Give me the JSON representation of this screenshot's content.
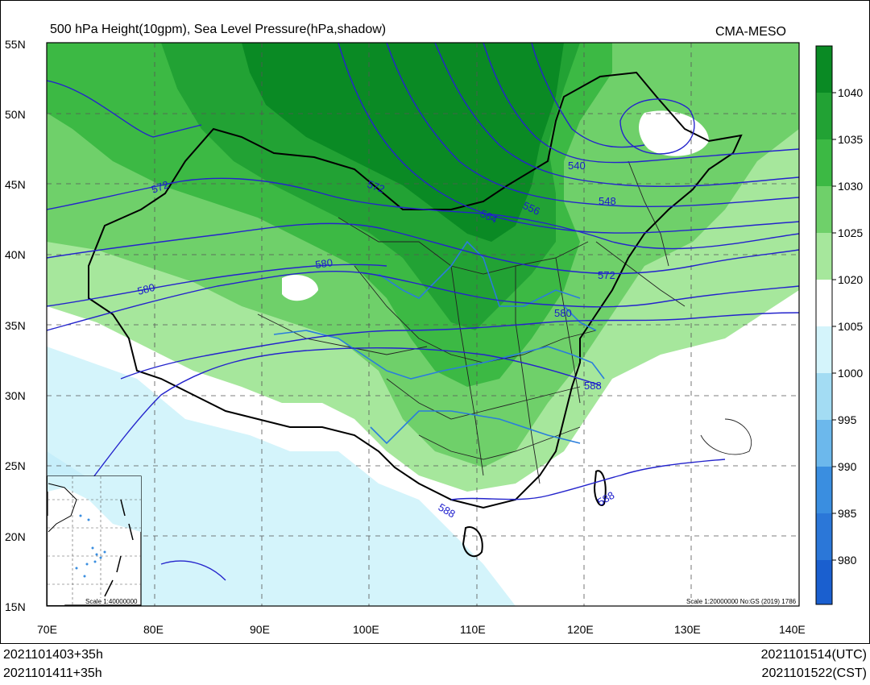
{
  "header": {
    "title": "500 hPa Height(10gpm), Sea Level Pressure(hPa,shadow)",
    "source": "CMA-MESO"
  },
  "axes": {
    "y_ticks": [
      "55N",
      "50N",
      "45N",
      "40N",
      "35N",
      "30N",
      "25N",
      "20N",
      "15N"
    ],
    "x_ticks": [
      "70E",
      "80E",
      "90E",
      "100E",
      "110E",
      "120E",
      "130E",
      "140E"
    ]
  },
  "colorbar": {
    "labels": [
      "1040",
      "1035",
      "1030",
      "1025",
      "1020",
      "1005",
      "1000",
      "995",
      "990",
      "985",
      "980"
    ],
    "colors": [
      "#0a8a24",
      "#22a234",
      "#3cb944",
      "#6fd06a",
      "#a6e79c",
      "#ffffff",
      "#d4f4fb",
      "#a3dcf3",
      "#6cb8ec",
      "#3a8ee0",
      "#1a5fcf"
    ]
  },
  "contour_labels": [
    "572",
    "572",
    "580",
    "580",
    "564",
    "556",
    "540",
    "548",
    "572",
    "580",
    "588",
    "588",
    "588"
  ],
  "map_notes": {
    "main_scale": "Scale 1:20000000 No:GS (2019) 1786",
    "inset_scale": "Scale 1:40000000"
  },
  "footer": {
    "init_utc": "2021101403+35h",
    "init_cst": "2021101411+35h",
    "valid_utc": "2021101514(UTC)",
    "valid_cst": "2021101522(CST)"
  }
}
